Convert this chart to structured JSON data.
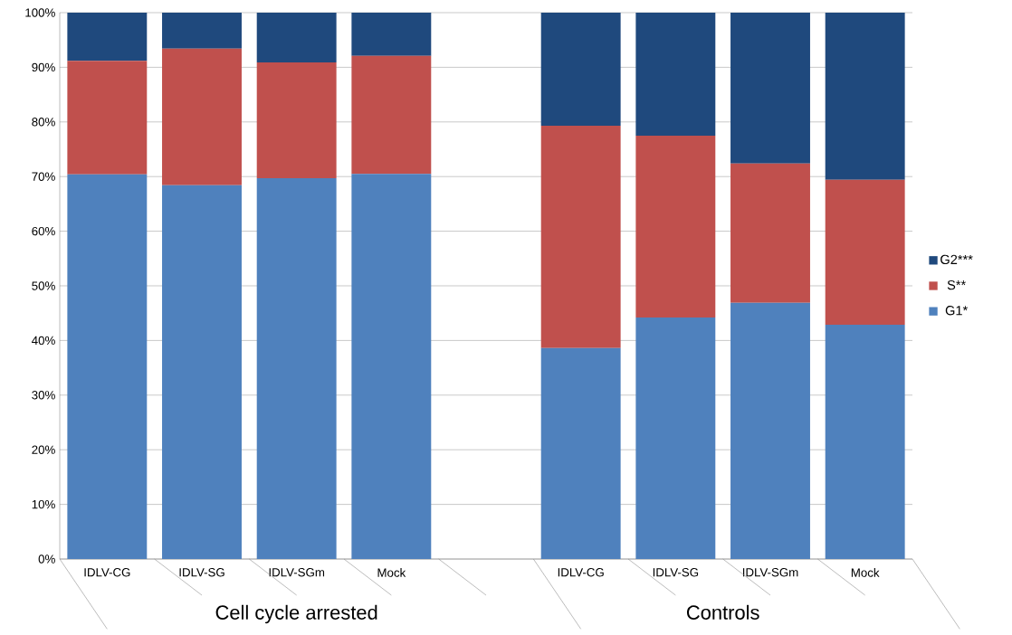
{
  "chart_data": {
    "type": "bar",
    "stacked": true,
    "categories": [
      "IDLV-CG",
      "IDLV-SG",
      "IDLV-SGm",
      "Mock",
      null,
      "IDLV-CG",
      "IDLV-SG",
      "IDLV-SGm",
      "Mock"
    ],
    "series": [
      {
        "name": "G1*",
        "color": "#4f81bd",
        "values": [
          70.4,
          68.4,
          69.7,
          70.5,
          null,
          38.6,
          44.2,
          46.9,
          42.9
        ]
      },
      {
        "name": "S**",
        "color": "#c0504d",
        "values": [
          20.8,
          25.0,
          21.2,
          21.6,
          null,
          40.7,
          33.3,
          25.5,
          26.5
        ]
      },
      {
        "name": "G2***",
        "color": "#1f497d",
        "values": [
          8.8,
          6.6,
          9.1,
          7.9,
          null,
          20.7,
          22.5,
          27.6,
          30.6
        ]
      }
    ],
    "ylim": [
      0,
      100
    ],
    "yticks": [
      {
        "value": 0,
        "label": "0%"
      },
      {
        "value": 10,
        "label": "10%"
      },
      {
        "value": 20,
        "label": "20%"
      },
      {
        "value": 30,
        "label": "30%"
      },
      {
        "value": 40,
        "label": "40%"
      },
      {
        "value": 50,
        "label": "50%"
      },
      {
        "value": 60,
        "label": "60%"
      },
      {
        "value": 70,
        "label": "70%"
      },
      {
        "value": 80,
        "label": "80%"
      },
      {
        "value": 90,
        "label": "90%"
      },
      {
        "value": 100,
        "label": "100%"
      }
    ],
    "grid": "y",
    "legend": "right",
    "annotations": [
      "Cell cycle arrested",
      "Controls"
    ]
  }
}
